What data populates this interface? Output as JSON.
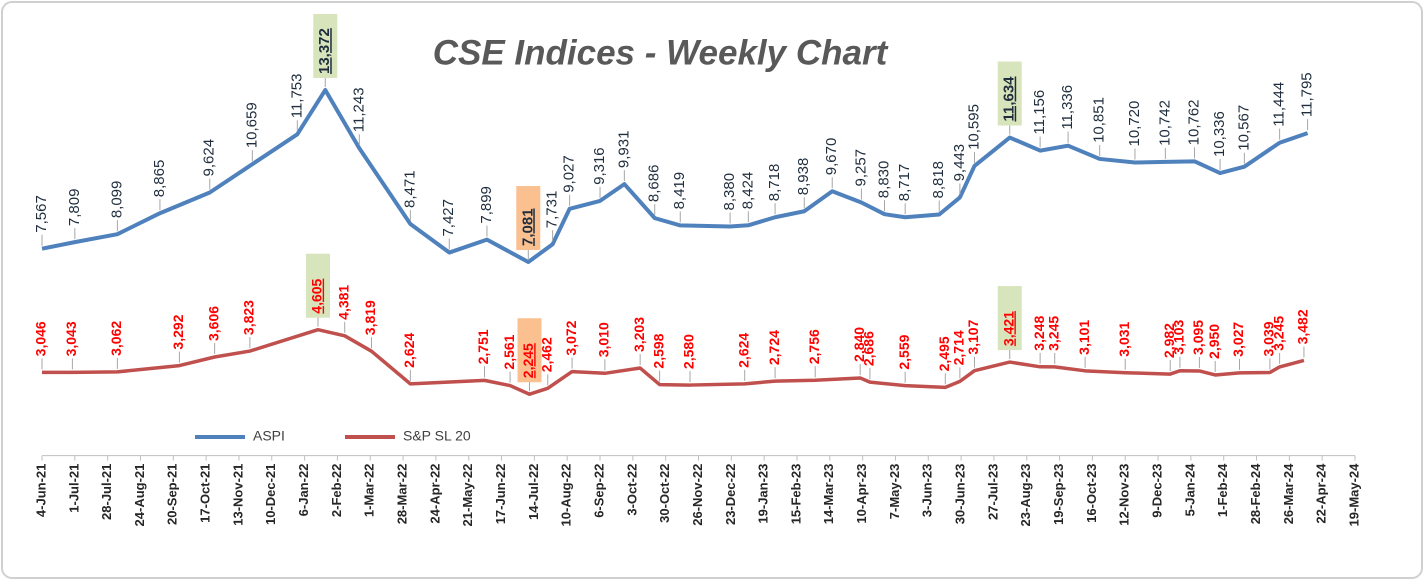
{
  "chart_data": {
    "type": "line",
    "title": "CSE Indices - Weekly Chart",
    "xlim": [
      "4-Jun-21",
      "19-May-24"
    ],
    "xticks": [
      "4-Jun-21",
      "1-Jul-21",
      "28-Jul-21",
      "24-Aug-21",
      "20-Sep-21",
      "17-Oct-21",
      "13-Nov-21",
      "10-Dec-21",
      "6-Jan-22",
      "2-Feb-22",
      "1-Mar-22",
      "28-Mar-22",
      "24-Apr-22",
      "21-May-22",
      "17-Jun-22",
      "14-Jul-22",
      "10-Aug-22",
      "6-Sep-22",
      "3-Oct-22",
      "30-Oct-22",
      "26-Nov-22",
      "23-Dec-22",
      "19-Jan-23",
      "15-Feb-23",
      "14-Mar-23",
      "10-Apr-23",
      "7-May-23",
      "3-Jun-23",
      "30-Jun-23",
      "27-Jul-23",
      "23-Aug-23",
      "19-Sep-23",
      "16-Oct-23",
      "12-Nov-23",
      "9-Dec-23",
      "5-Jan-24",
      "1-Feb-24",
      "28-Feb-24",
      "26-Mar-24",
      "22-Apr-24",
      "19-May-24"
    ],
    "ylim": [
      0,
      15000
    ],
    "legend": "lower left",
    "series": [
      {
        "name": "ASPI",
        "color": "#4f81bd",
        "label_color": "#1f2d3d",
        "x": [
          "4-Jun-21",
          "1-Jul-21",
          "5-Aug-21",
          "9-Sep-21",
          "20-Oct-21",
          "24-Nov-21",
          "31-Dec-21",
          "23-Jan-22",
          "20-Feb-22",
          "3-Apr-22",
          "5-May-22",
          "5-Jun-22",
          "9-Jul-22",
          "29-Jul-22",
          "12-Aug-22",
          "6-Sep-22",
          "26-Sep-22",
          "21-Oct-22",
          "11-Nov-22",
          "22-Dec-22",
          "6-Jan-23",
          "28-Jan-23",
          "21-Feb-23",
          "16-Mar-23",
          "9-Apr-23",
          "28-Apr-23",
          "15-May-23",
          "12-Jun-23",
          "29-Jun-23",
          "11-Jul-23",
          "9-Aug-23",
          "3-Sep-23",
          "26-Sep-23",
          "22-Oct-23",
          "20-Nov-23",
          "15-Dec-23",
          "8-Jan-24",
          "29-Jan-24",
          "18-Feb-24",
          "18-Mar-24",
          "10-Apr-24"
        ],
        "values": [
          7567,
          7809,
          8099,
          8865,
          9624,
          10659,
          11753,
          13372,
          11243,
          8471,
          7427,
          7899,
          7081,
          7731,
          9027,
          9316,
          9931,
          8686,
          8419,
          8380,
          8424,
          8718,
          8938,
          9670,
          9257,
          8830,
          8717,
          8818,
          9443,
          10595,
          11634,
          11156,
          11336,
          10851,
          10720,
          10742,
          10762,
          10336,
          10567,
          11444,
          11795
        ],
        "value_labels": [
          "7,567",
          "7,809",
          "8,099",
          "8,865",
          "9,624",
          "10,659",
          "11,753",
          "13,372",
          "11,243",
          "8,471",
          "7,427",
          "7,899",
          "7,081",
          "7,731",
          "9,027",
          "9,316",
          "9,931",
          "8,686",
          "8,419",
          "8,380",
          "8,424",
          "8,718",
          "8,938",
          "9,670",
          "9,257",
          "8,830",
          "8,717",
          "8,818",
          "9,443",
          "10,595",
          "11,634",
          "11,156",
          "11,336",
          "10,851",
          "10,720",
          "10,742",
          "10,762",
          "10,336",
          "10,567",
          "11,444",
          "11,795"
        ],
        "highlights": [
          {
            "index": 7,
            "color": "#d8e4bc"
          },
          {
            "index": 12,
            "color": "#fac090"
          },
          {
            "index": 30,
            "color": "#d8e4bc"
          }
        ]
      },
      {
        "name": "S&P SL 20",
        "color": "#c0504d",
        "label_color": "#ff0000",
        "x": [
          "4-Jun-21",
          "29-Jun-21",
          "5-Aug-21",
          "25-Sep-21",
          "24-Oct-21",
          "22-Nov-21",
          "17-Jan-22",
          "8-Feb-22",
          "2-Mar-22",
          "3-Apr-22",
          "3-Jun-22",
          "24-Jun-22",
          "10-Jul-22",
          "25-Jul-22",
          "14-Aug-22",
          "10-Sep-22",
          "9-Oct-22",
          "25-Oct-22",
          "19-Nov-22",
          "3-Jan-23",
          "28-Jan-23",
          "2-Mar-23",
          "8-Apr-23",
          "16-Apr-23",
          "15-May-23",
          "17-Jun-23",
          "29-Jun-23",
          "11-Jul-23",
          "9-Aug-23",
          "3-Sep-23",
          "15-Sep-23",
          "10-Oct-23",
          "12-Nov-23",
          "19-Dec-23",
          "27-Dec-23",
          "12-Jan-24",
          "25-Jan-24",
          "14-Feb-24",
          "10-Mar-24",
          "18-Mar-24",
          "7-Apr-24"
        ],
        "values": [
          3046,
          3043,
          3062,
          3292,
          3606,
          3823,
          4605,
          4381,
          3819,
          2624,
          2751,
          2561,
          2245,
          2462,
          3072,
          3010,
          3203,
          2598,
          2580,
          2624,
          2724,
          2756,
          2840,
          2686,
          2559,
          2495,
          2714,
          3107,
          3421,
          3248,
          3245,
          3101,
          3031,
          2982,
          3103,
          3095,
          2950,
          3027,
          3039,
          3245,
          3482
        ],
        "value_labels": [
          "3,046",
          "3,043",
          "3,062",
          "3,292",
          "3,606",
          "3,823",
          "4,605",
          "4,381",
          "3,819",
          "2,624",
          "2,751",
          "2,561",
          "2,245",
          "2,462",
          "3,072",
          "3,010",
          "3,203",
          "2,598",
          "2,580",
          "2,624",
          "2,724",
          "2,756",
          "2,840",
          "2,686",
          "2,559",
          "2,495",
          "2,714",
          "3,107",
          "3,421",
          "3,248",
          "3,245",
          "3,101",
          "3,031",
          "2,982",
          "3,103",
          "3,095",
          "2,950",
          "3,027",
          "3,039",
          "3,245",
          "3,482"
        ],
        "highlights": [
          {
            "index": 6,
            "color": "#d8e4bc"
          },
          {
            "index": 12,
            "color": "#fac090"
          },
          {
            "index": 28,
            "color": "#d8e4bc"
          }
        ]
      }
    ]
  }
}
